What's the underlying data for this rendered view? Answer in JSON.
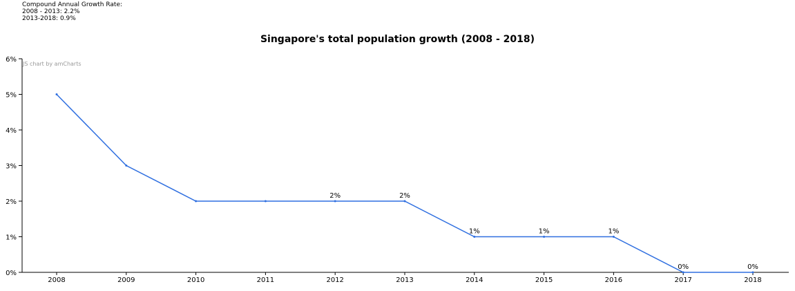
{
  "cagr": {
    "heading": "Compound Annual Growth Rate:",
    "line1": "2008 - 2013: 2.2%",
    "line2": "2013-2018: 0.9%"
  },
  "credit": "JS chart by amCharts",
  "colors": {
    "line": "#2f6fe0",
    "axis": "#000000"
  },
  "chart_data": {
    "type": "line",
    "title": "Singapore's total population growth (2008 - 2018)",
    "xlabel": "",
    "ylabel": "",
    "categories": [
      "2008",
      "2009",
      "2010",
      "2011",
      "2012",
      "2013",
      "2014",
      "2015",
      "2016",
      "2017",
      "2018"
    ],
    "values": [
      5,
      3,
      2,
      2,
      2,
      2,
      1,
      1,
      1,
      0,
      0
    ],
    "data_labels": [
      "",
      "",
      "",
      "",
      "2%",
      "2%",
      "1%",
      "1%",
      "1%",
      "0%",
      "0%"
    ],
    "yticks": [
      "0%",
      "1%",
      "2%",
      "3%",
      "4%",
      "5%",
      "6%"
    ],
    "ylim": [
      0,
      6
    ],
    "grid": false
  }
}
